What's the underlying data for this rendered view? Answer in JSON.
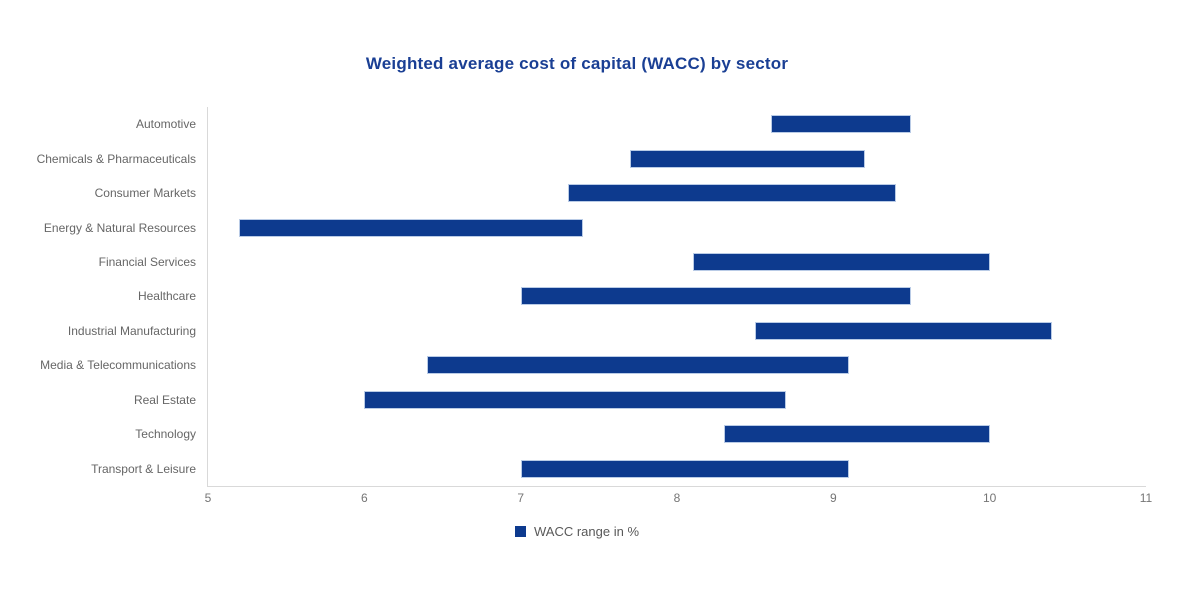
{
  "chart_data": {
    "type": "bar",
    "subtype": "horizontal-range-bar",
    "title": "Weighted average cost of capital (WACC) by sector",
    "categories": [
      "Automotive",
      "Chemicals & Pharmaceuticals",
      "Consumer Markets",
      "Energy & Natural Resources",
      "Financial Services",
      "Healthcare",
      "Industrial Manufacturing",
      "Media & Telecommunications",
      "Real Estate",
      "Technology",
      "Transport & Leisure"
    ],
    "series": [
      {
        "name": "WACC range in %",
        "ranges": [
          [
            8.6,
            9.5
          ],
          [
            7.7,
            9.2
          ],
          [
            7.3,
            9.4
          ],
          [
            5.2,
            7.4
          ],
          [
            8.1,
            10.0
          ],
          [
            7.0,
            9.5
          ],
          [
            8.5,
            10.4
          ],
          [
            6.4,
            9.1
          ],
          [
            6.0,
            8.7
          ],
          [
            8.3,
            10.0
          ],
          [
            7.0,
            9.1
          ]
        ]
      }
    ],
    "xlabel": "",
    "ylabel": "",
    "xlim": [
      5,
      11
    ],
    "x_ticks": [
      5,
      6,
      7,
      8,
      9,
      10,
      11
    ],
    "grid": false,
    "legend_position": "bottom",
    "colors": {
      "bar": "#0d3a8e",
      "bar_border": "#b9cbe6",
      "title": "#1a3f94",
      "axis_line": "#d9d9d9",
      "category_text": "#666666",
      "tick_text": "#757575",
      "legend_text": "#595959"
    }
  }
}
